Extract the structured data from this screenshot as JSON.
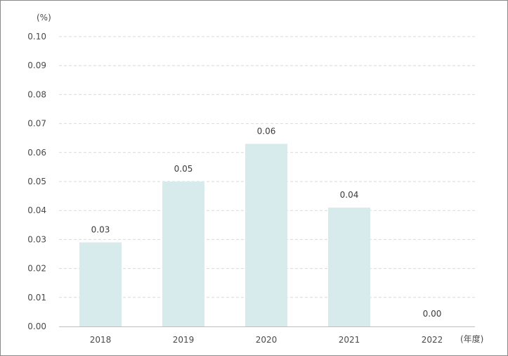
{
  "chart_data": {
    "type": "bar",
    "categories": [
      "2018",
      "2019",
      "2020",
      "2021",
      "2022"
    ],
    "values": [
      0.029,
      0.05,
      0.063,
      0.041,
      0.0
    ],
    "data_labels": [
      "0.03",
      "0.05",
      "0.06",
      "0.04",
      "0.00"
    ],
    "y_unit": "(%)",
    "x_unit": "(年度)",
    "ylim": [
      0,
      0.1
    ],
    "y_ticks": [
      "0.00",
      "0.01",
      "0.02",
      "0.03",
      "0.04",
      "0.05",
      "0.06",
      "0.07",
      "0.08",
      "0.09",
      "0.10"
    ],
    "grid": true,
    "legend": "none",
    "bar_color": "#d7eaec",
    "grid_color": "#d9d9d9",
    "axis_color": "#bfbfbf"
  }
}
